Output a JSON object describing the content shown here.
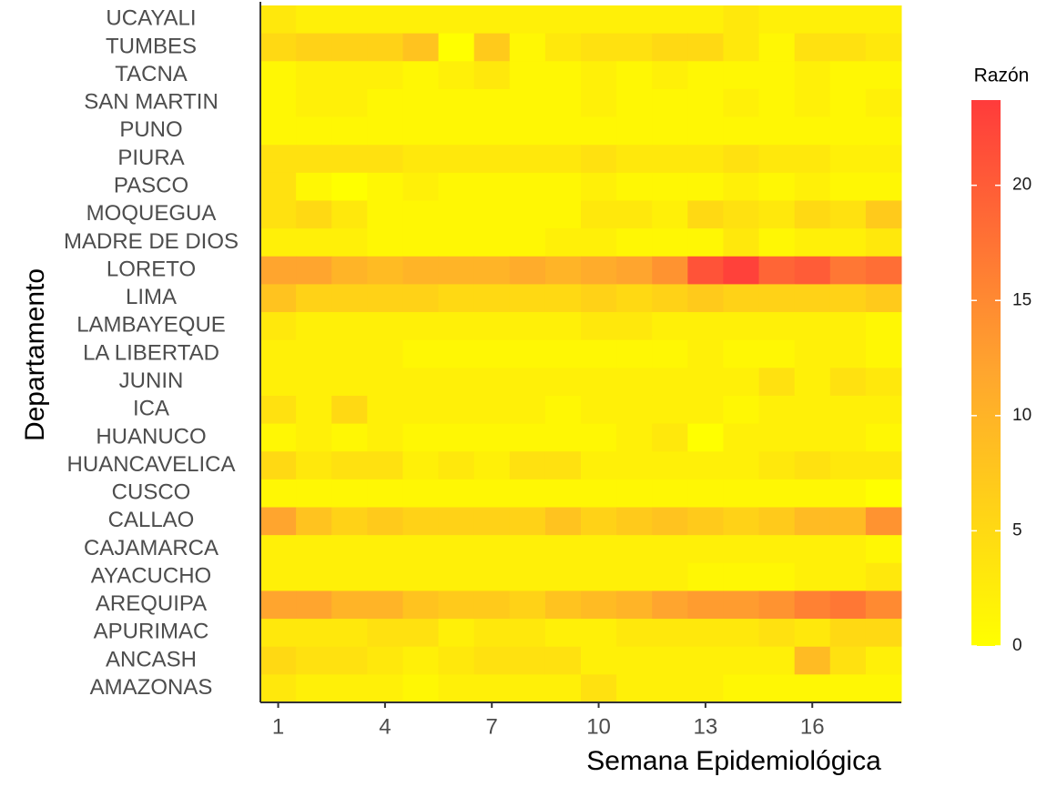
{
  "chart_data": {
    "type": "heatmap",
    "x_label": "Semana Epidemiológica",
    "y_label": "Departamento",
    "legend_title": "Razón",
    "x": [
      1,
      2,
      3,
      4,
      5,
      6,
      7,
      8,
      9,
      10,
      11,
      12,
      13,
      14,
      15,
      16,
      17,
      18
    ],
    "xlim": [
      0.5,
      18.5
    ],
    "xticks": [
      1,
      4,
      7,
      10,
      13,
      16
    ],
    "y_categories": [
      "UCAYALI",
      "TUMBES",
      "TACNA",
      "SAN MARTIN",
      "PUNO",
      "PIURA",
      "PASCO",
      "MOQUEGUA",
      "MADRE DE DIOS",
      "LORETO",
      "LIMA",
      "LAMBAYEQUE",
      "LA LIBERTAD",
      "JUNIN",
      "ICA",
      "HUANUCO",
      "HUANCAVELICA",
      "CUSCO",
      "CALLAO",
      "CAJAMARCA",
      "AYACUCHO",
      "AREQUIPA",
      "APURIMAC",
      "ANCASH",
      "AMAZONAS"
    ],
    "z": [
      [
        3,
        2,
        2,
        2,
        2,
        2,
        2,
        2,
        2,
        2,
        2,
        2,
        2,
        3,
        2,
        2,
        2,
        2
      ],
      [
        5,
        6,
        6,
        6,
        8,
        0,
        7,
        1,
        3,
        4,
        4,
        5,
        5,
        3,
        1,
        4,
        4,
        3
      ],
      [
        1,
        2,
        2,
        2,
        1,
        2,
        3,
        1,
        1,
        2,
        1,
        2,
        1,
        1,
        1,
        2,
        1,
        1
      ],
      [
        1,
        2,
        2,
        1,
        1,
        1,
        1,
        1,
        1,
        2,
        1,
        1,
        1,
        2,
        1,
        2,
        1,
        2
      ],
      [
        1,
        1,
        1,
        1,
        1,
        1,
        1,
        1,
        1,
        1,
        1,
        1,
        1,
        1,
        1,
        1,
        1,
        1
      ],
      [
        4,
        4,
        4,
        4,
        3,
        3,
        3,
        3,
        3,
        4,
        3,
        3,
        3,
        4,
        3,
        3,
        2,
        2
      ],
      [
        4,
        1,
        0,
        1,
        2,
        1,
        1,
        1,
        1,
        2,
        1,
        1,
        1,
        2,
        1,
        2,
        1,
        1
      ],
      [
        4,
        5,
        3,
        1,
        1,
        1,
        1,
        1,
        1,
        3,
        3,
        2,
        5,
        4,
        3,
        5,
        4,
        7
      ],
      [
        2,
        2,
        2,
        1,
        1,
        1,
        1,
        1,
        2,
        2,
        1,
        1,
        1,
        3,
        1,
        2,
        2,
        3
      ],
      [
        12,
        12,
        10,
        9,
        10,
        10,
        10,
        11,
        10,
        11,
        12,
        14,
        21,
        23,
        19,
        20,
        17,
        18
      ],
      [
        8,
        6,
        6,
        6,
        6,
        5,
        5,
        5,
        5,
        6,
        5,
        6,
        7,
        6,
        6,
        6,
        6,
        7
      ],
      [
        3,
        2,
        2,
        2,
        2,
        2,
        2,
        2,
        2,
        3,
        3,
        2,
        2,
        2,
        2,
        2,
        2,
        1
      ],
      [
        2,
        2,
        2,
        2,
        1,
        1,
        1,
        1,
        1,
        1,
        1,
        1,
        2,
        1,
        1,
        2,
        2,
        1
      ],
      [
        2,
        2,
        2,
        2,
        2,
        2,
        2,
        2,
        2,
        2,
        2,
        2,
        2,
        2,
        4,
        2,
        4,
        3
      ],
      [
        4,
        2,
        5,
        2,
        2,
        2,
        2,
        2,
        1,
        2,
        2,
        2,
        2,
        1,
        2,
        2,
        2,
        2
      ],
      [
        1,
        2,
        1,
        2,
        1,
        1,
        1,
        1,
        1,
        1,
        2,
        3,
        0,
        2,
        2,
        2,
        2,
        1
      ],
      [
        5,
        3,
        4,
        4,
        2,
        3,
        2,
        4,
        4,
        2,
        2,
        2,
        2,
        2,
        3,
        4,
        3,
        3
      ],
      [
        1,
        1,
        1,
        1,
        1,
        1,
        1,
        1,
        1,
        1,
        1,
        1,
        1,
        1,
        1,
        1,
        1,
        0
      ],
      [
        12,
        8,
        6,
        7,
        6,
        6,
        6,
        6,
        8,
        6,
        7,
        8,
        7,
        6,
        7,
        9,
        9,
        14
      ],
      [
        2,
        2,
        2,
        2,
        2,
        2,
        2,
        2,
        2,
        2,
        2,
        2,
        2,
        2,
        2,
        2,
        2,
        1
      ],
      [
        2,
        2,
        2,
        2,
        2,
        2,
        2,
        2,
        2,
        2,
        2,
        2,
        1,
        1,
        1,
        2,
        2,
        3
      ],
      [
        12,
        12,
        10,
        10,
        8,
        7,
        7,
        6,
        8,
        9,
        10,
        12,
        13,
        13,
        14,
        16,
        17,
        15
      ],
      [
        3,
        3,
        3,
        4,
        4,
        2,
        3,
        3,
        2,
        2,
        3,
        3,
        3,
        3,
        4,
        3,
        5,
        5
      ],
      [
        5,
        4,
        4,
        3,
        2,
        3,
        4,
        4,
        4,
        2,
        2,
        2,
        2,
        2,
        2,
        9,
        4,
        2
      ],
      [
        3,
        2,
        2,
        2,
        1,
        2,
        2,
        2,
        2,
        4,
        2,
        2,
        2,
        1,
        1,
        1,
        1,
        1
      ]
    ],
    "zlim": [
      0,
      23.7
    ],
    "zticks": [
      0,
      5,
      10,
      15,
      20
    ],
    "colors": [
      "#ffff00",
      "#ffa62e",
      "#ff3b3b"
    ]
  }
}
